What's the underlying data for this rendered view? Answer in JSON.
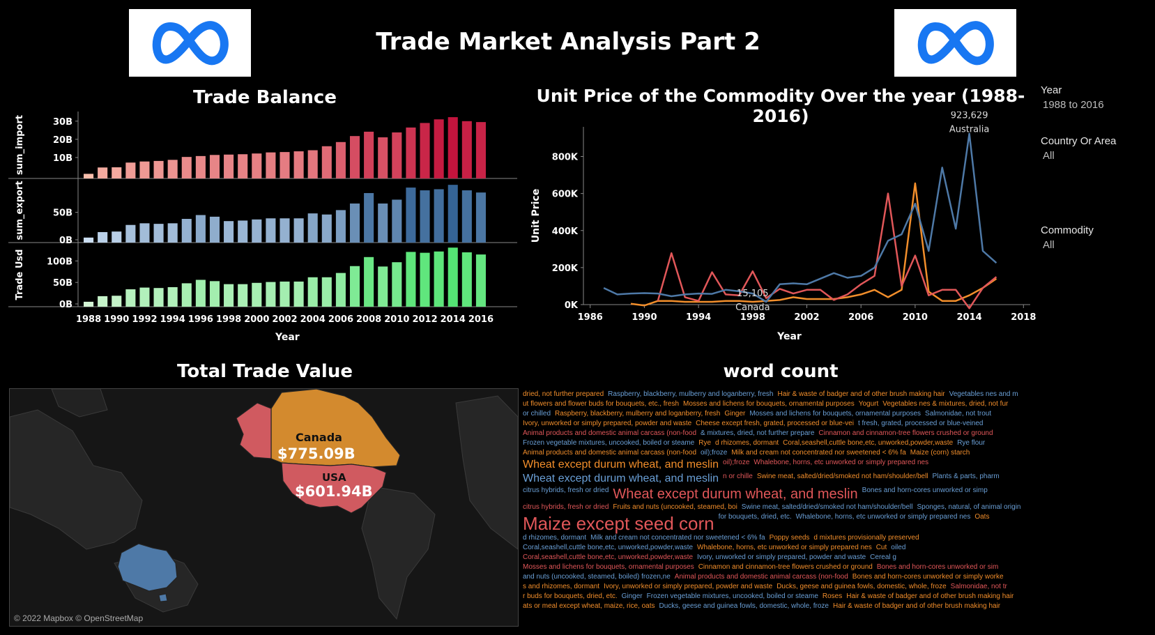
{
  "header": {
    "title": "Trade Market Analysis Part 2",
    "logo_icon": "meta-infinity-logo-icon"
  },
  "colors": {
    "background": "#000000",
    "meta_blue": "#1877f2",
    "series_line_blue": "#4e79a7",
    "series_line_red": "#e15759",
    "series_line_orange": "#f28e2b",
    "map_canada": "#d38a2e",
    "map_usa": "#d05a60",
    "map_australia": "#4e79a7"
  },
  "filters": [
    {
      "label": "Year",
      "value": "1988 to 2016"
    },
    {
      "label": "Country Or Area",
      "value": "All"
    },
    {
      "label": "Commodity",
      "value": "All"
    }
  ],
  "trade_balance": {
    "title": "Trade Balance",
    "xlabel": "Year"
  },
  "unit_price": {
    "title": "Unit Price of the Commodity Over the year (1988-2016)",
    "xlabel": "Year",
    "ylabel": "Unit Price",
    "annotations": [
      {
        "value": "923,629",
        "label": "Australia",
        "x": 2014,
        "y": 923629
      },
      {
        "value": "15,105",
        "label": "Canada",
        "x": 1998,
        "y": 15105
      }
    ]
  },
  "total_trade": {
    "title": "Total Trade Value",
    "labels": [
      {
        "country": "Canada",
        "value": "$775.09B"
      },
      {
        "country": "USA",
        "value": "$601.94B"
      }
    ],
    "attribution": "© 2022 Mapbox © OpenStreetMap"
  },
  "word_count": {
    "title": "word count",
    "words": [
      {
        "text": "dried, not further prepared",
        "size": 10,
        "color": "#f28e2b"
      },
      {
        "text": "Raspberry, blackberry, mulberry and loganberry, fresh",
        "size": 10,
        "color": "#6a9fd6"
      },
      {
        "text": "Hair & waste of badger and of other brush making hair",
        "size": 10,
        "color": "#f28e2b"
      },
      {
        "text": "Vegetables nes and m",
        "size": 10,
        "color": "#6a9fd6"
      },
      {
        "text": "ut flowers and flower buds for bouquets, etc., fresh",
        "size": 10,
        "color": "#f28e2b"
      },
      {
        "text": "Mosses and lichens for bouquets, ornamental purposes",
        "size": 10,
        "color": "#f28e2b"
      },
      {
        "text": "Yogurt",
        "size": 10,
        "color": "#f28e2b"
      },
      {
        "text": "Vegetables nes & mixtures, dried, not fur",
        "size": 10,
        "color": "#f28e2b"
      },
      {
        "text": "or chilled",
        "size": 10,
        "color": "#6a9fd6"
      },
      {
        "text": "Raspberry, blackberry, mulberry and loganberry, fresh",
        "size": 10,
        "color": "#f28e2b"
      },
      {
        "text": "Ginger",
        "size": 10,
        "color": "#f28e2b"
      },
      {
        "text": "Mosses and lichens for bouquets, ornamental purposes",
        "size": 10,
        "color": "#6a9fd6"
      },
      {
        "text": "Salmonidae, not trout",
        "size": 10,
        "color": "#6a9fd6"
      },
      {
        "text": "Ivory, unworked or simply prepared, powder and waste",
        "size": 10,
        "color": "#f28e2b"
      },
      {
        "text": "Cheese except fresh, grated, processed or blue-vei",
        "size": 10,
        "color": "#f28e2b"
      },
      {
        "text": "t fresh, grated, processed or blue-veined",
        "size": 10,
        "color": "#6a9fd6"
      },
      {
        "text": "Animal products and domestic animal carcass (non-food",
        "size": 10,
        "color": "#e15759"
      },
      {
        "text": "& mixtures, dried, not further prepare",
        "size": 10,
        "color": "#6a9fd6"
      },
      {
        "text": "Cinnamon and cinnamon-tree flowers crushed or ground",
        "size": 10,
        "color": "#e15759"
      },
      {
        "text": "Frozen vegetable mixtures, uncooked, boiled or steame",
        "size": 10,
        "color": "#6a9fd6"
      },
      {
        "text": "Rye",
        "size": 10,
        "color": "#f28e2b"
      },
      {
        "text": "d rhizomes, dormant",
        "size": 10,
        "color": "#f28e2b"
      },
      {
        "text": "Coral,seashell,cuttle bone,etc, unworked,powder,waste",
        "size": 10,
        "color": "#f28e2b"
      },
      {
        "text": "Rye flour",
        "size": 10,
        "color": "#6a9fd6"
      },
      {
        "text": "Animal products and domestic animal carcass (non-food",
        "size": 10,
        "color": "#f28e2b"
      },
      {
        "text": "oil);froze",
        "size": 10,
        "color": "#6a9fd6"
      },
      {
        "text": "Milk and cream not concentrated nor sweetened < 6% fa",
        "size": 10,
        "color": "#f28e2b"
      },
      {
        "text": "Maize (corn) starch",
        "size": 10,
        "color": "#f28e2b"
      },
      {
        "text": "Wheat except durum wheat, and meslin",
        "size": 16,
        "color": "#f28e2b"
      },
      {
        "text": "oil);froze",
        "size": 10,
        "color": "#e15759"
      },
      {
        "text": "Whalebone, horns, etc unworked or simply prepared nes",
        "size": 10,
        "color": "#e15759"
      },
      {
        "text": "Wheat except durum wheat, and meslin",
        "size": 16,
        "color": "#6a9fd6"
      },
      {
        "text": "n or chille",
        "size": 10,
        "color": "#e15759"
      },
      {
        "text": "Swine meat, salted/dried/smoked not ham/shoulder/bell",
        "size": 10,
        "color": "#f28e2b"
      },
      {
        "text": "Plants & parts, pharm",
        "size": 10,
        "color": "#6a9fd6"
      },
      {
        "text": "citrus hybrids, fresh or dried",
        "size": 10,
        "color": "#6a9fd6"
      },
      {
        "text": "Wheat except durum wheat, and meslin",
        "size": 20,
        "color": "#e15759"
      },
      {
        "text": "Bones and horn-cores unworked or simp",
        "size": 10,
        "color": "#6a9fd6"
      },
      {
        "text": "citrus hybrids, fresh or dried",
        "size": 10,
        "color": "#e15759"
      },
      {
        "text": "Fruits and nuts (uncooked, steamed, boi",
        "size": 10,
        "color": "#f28e2b"
      },
      {
        "text": "Swine meat, salted/dried/smoked not ham/shoulder/bell",
        "size": 10,
        "color": "#6a9fd6"
      },
      {
        "text": "Sponges, natural, of animal origin",
        "size": 10,
        "color": "#6a9fd6"
      },
      {
        "text": "Maize except seed corn",
        "size": 26,
        "color": "#e15759"
      },
      {
        "text": "for bouquets, dried, etc.",
        "size": 10,
        "color": "#6a9fd6"
      },
      {
        "text": "Whalebone, horns, etc unworked or simply prepared nes",
        "size": 10,
        "color": "#6a9fd6"
      },
      {
        "text": "Oats",
        "size": 10,
        "color": "#f28e2b"
      },
      {
        "text": "d rhizomes, dormant",
        "size": 10,
        "color": "#6a9fd6"
      },
      {
        "text": "Milk and cream not concentrated nor sweetened < 6% fa",
        "size": 10,
        "color": "#6a9fd6"
      },
      {
        "text": "Poppy seeds",
        "size": 10,
        "color": "#f28e2b"
      },
      {
        "text": "d mixtures provisionally preserved",
        "size": 10,
        "color": "#f28e2b"
      },
      {
        "text": "Coral,seashell,cuttle bone,etc, unworked,powder,waste",
        "size": 10,
        "color": "#6a9fd6"
      },
      {
        "text": "Whalebone, horns, etc unworked or simply prepared nes",
        "size": 10,
        "color": "#f28e2b"
      },
      {
        "text": "Cut",
        "size": 10,
        "color": "#f28e2b"
      },
      {
        "text": "oiled",
        "size": 10,
        "color": "#6a9fd6"
      },
      {
        "text": "Coral,seashell,cuttle bone,etc, unworked,powder,waste",
        "size": 10,
        "color": "#e15759"
      },
      {
        "text": "Ivory, unworked or simply prepared, powder and waste",
        "size": 10,
        "color": "#6a9fd6"
      },
      {
        "text": "Cereal g",
        "size": 10,
        "color": "#6a9fd6"
      },
      {
        "text": "Mosses and lichens for bouquets, ornamental purposes",
        "size": 10,
        "color": "#e15759"
      },
      {
        "text": "Cinnamon and cinnamon-tree flowers crushed or ground",
        "size": 10,
        "color": "#f28e2b"
      },
      {
        "text": "Bones and horn-cores unworked or sim",
        "size": 10,
        "color": "#e15759"
      },
      {
        "text": "and nuts (uncooked, steamed, boiled) frozen,ne",
        "size": 10,
        "color": "#6a9fd6"
      },
      {
        "text": "Animal products and domestic animal carcass (non-food",
        "size": 10,
        "color": "#e15759"
      },
      {
        "text": "Bones and horn-cores unworked or simply worke",
        "size": 10,
        "color": "#f28e2b"
      },
      {
        "text": "s and rhizomes, dormant",
        "size": 10,
        "color": "#f28e2b"
      },
      {
        "text": "Ivory, unworked or simply prepared, powder and waste",
        "size": 10,
        "color": "#f28e2b"
      },
      {
        "text": "Ducks, geese and guinea fowls, domestic, whole, froze",
        "size": 10,
        "color": "#f28e2b"
      },
      {
        "text": "Salmonidae, not tr",
        "size": 10,
        "color": "#e15759"
      },
      {
        "text": "r buds for bouquets, dried, etc.",
        "size": 10,
        "color": "#f28e2b"
      },
      {
        "text": "Ginger",
        "size": 10,
        "color": "#6a9fd6"
      },
      {
        "text": "Frozen vegetable mixtures, uncooked, boiled or steame",
        "size": 10,
        "color": "#6a9fd6"
      },
      {
        "text": "Roses",
        "size": 10,
        "color": "#f28e2b"
      },
      {
        "text": "Hair & waste of badger and of other brush making hair",
        "size": 10,
        "color": "#f28e2b"
      },
      {
        "text": "ats or meal except wheat, maize, rice, oats",
        "size": 10,
        "color": "#f28e2b"
      },
      {
        "text": "Ducks, geese and guinea fowls, domestic, whole, froze",
        "size": 10,
        "color": "#6a9fd6"
      },
      {
        "text": "Hair & waste of badger and of other brush making hair",
        "size": 10,
        "color": "#f28e2b"
      }
    ]
  },
  "chart_data": [
    {
      "type": "bar",
      "name": "trade-balance-import",
      "ylabel": "sum_import",
      "categories": [
        1988,
        1989,
        1990,
        1991,
        1992,
        1993,
        1994,
        1995,
        1996,
        1997,
        1998,
        1999,
        2000,
        2001,
        2002,
        2003,
        2004,
        2005,
        2006,
        2007,
        2008,
        2009,
        2010,
        2011,
        2012,
        2013,
        2014,
        2015,
        2016
      ],
      "values": [
        1.0,
        4.5,
        4.6,
        7.2,
        7.8,
        8.1,
        8.7,
        10.3,
        10.8,
        11.4,
        11.6,
        11.8,
        12.2,
        12.8,
        13.0,
        13.4,
        14.0,
        16.2,
        18.5,
        21.8,
        24.2,
        21.1,
        23.8,
        26.5,
        29.0,
        31.0,
        32.2,
        30.0,
        29.5
      ],
      "ylim": [
        0,
        33
      ],
      "ticks": [
        "10B",
        "20B",
        "30B"
      ],
      "tick_values": [
        10,
        20,
        30
      ]
    },
    {
      "type": "bar",
      "name": "trade-balance-export",
      "ylabel": "sum_export",
      "categories": [
        1988,
        1989,
        1990,
        1991,
        1992,
        1993,
        1994,
        1995,
        1996,
        1997,
        1998,
        1999,
        2000,
        2001,
        2002,
        2003,
        2004,
        2005,
        2006,
        2007,
        2008,
        2009,
        2010,
        2011,
        2012,
        2013,
        2014,
        2015,
        2016
      ],
      "values": [
        4,
        14,
        15,
        27,
        30,
        29,
        30,
        38,
        45,
        42,
        34,
        35,
        37,
        39,
        39,
        39,
        48,
        46,
        54,
        66,
        85,
        66,
        73,
        95,
        90,
        92,
        100,
        90,
        86
      ],
      "ylim": [
        0,
        104
      ],
      "ticks": [
        "0B",
        "50B"
      ],
      "tick_values": [
        0,
        50
      ]
    },
    {
      "type": "bar",
      "name": "trade-balance-usd",
      "ylabel": "Trade Usd",
      "categories": [
        1988,
        1989,
        1990,
        1991,
        1992,
        1993,
        1994,
        1995,
        1996,
        1997,
        1998,
        1999,
        2000,
        2001,
        2002,
        2003,
        2004,
        2005,
        2006,
        2007,
        2008,
        2009,
        2010,
        2011,
        2012,
        2013,
        2014,
        2015,
        2016
      ],
      "values": [
        5,
        18,
        19,
        34,
        38,
        37,
        39,
        48,
        56,
        53,
        46,
        46,
        49,
        51,
        52,
        52,
        62,
        62,
        72,
        88,
        109,
        87,
        97,
        121,
        119,
        122,
        131,
        120,
        115
      ],
      "ylim": [
        0,
        133
      ],
      "ticks": [
        "0B",
        "50B",
        "100B"
      ],
      "tick_values": [
        0,
        50,
        100
      ]
    },
    {
      "type": "line",
      "name": "unit-price",
      "xlabel": "Year",
      "ylabel": "Unit Price",
      "xlim": [
        1985.5,
        2018.5
      ],
      "ylim": [
        0,
        960000
      ],
      "xticks": [
        1986,
        1990,
        1994,
        1998,
        2002,
        2006,
        2010,
        2014,
        2018
      ],
      "yticks": [
        0,
        200000,
        400000,
        600000,
        800000
      ],
      "ytick_labels": [
        "0K",
        "200K",
        "400K",
        "600K",
        "800K"
      ],
      "series": [
        {
          "color": "#4e79a7",
          "x": [
            1987,
            1988,
            1989,
            1990,
            1991,
            1992,
            1993,
            1994,
            1995,
            1996,
            1997,
            1998,
            1999,
            2000,
            2001,
            2002,
            2003,
            2004,
            2005,
            2006,
            2007,
            2008,
            2009,
            2010,
            2011,
            2012,
            2013,
            2014,
            2015,
            2016
          ],
          "y": [
            90000,
            55000,
            60000,
            62000,
            60000,
            45000,
            55000,
            60000,
            58000,
            80000,
            72000,
            60000,
            15105,
            110000,
            115000,
            110000,
            140000,
            170000,
            145000,
            155000,
            200000,
            345000,
            380000,
            545000,
            290000,
            740000,
            410000,
            923629,
            290000,
            225000
          ]
        },
        {
          "color": "#e15759",
          "x": [
            1991,
            1992,
            1993,
            1994,
            1995,
            1996,
            1997,
            1998,
            1999,
            2000,
            2001,
            2002,
            2003,
            2004,
            2005,
            2006,
            2007,
            2008,
            2009,
            2010,
            2011,
            2012,
            2013,
            2014,
            2015,
            2016
          ],
          "y": [
            20000,
            278000,
            40000,
            20000,
            175000,
            55000,
            50000,
            180000,
            35000,
            85000,
            60000,
            80000,
            80000,
            25000,
            55000,
            110000,
            155000,
            600000,
            100000,
            265000,
            50000,
            80000,
            80000,
            -20000,
            90000,
            150000
          ]
        },
        {
          "color": "#f28e2b",
          "x": [
            1989,
            1990,
            1991,
            1992,
            1993,
            1994,
            1995,
            1996,
            1997,
            1998,
            1999,
            2000,
            2001,
            2002,
            2003,
            2004,
            2005,
            2006,
            2007,
            2008,
            2009,
            2010,
            2011,
            2012,
            2013,
            2014,
            2015,
            2016
          ],
          "y": [
            5000,
            -5000,
            20000,
            20000,
            15000,
            15000,
            15000,
            20000,
            20000,
            15000,
            20000,
            25000,
            40000,
            30000,
            30000,
            30000,
            40000,
            55000,
            80000,
            40000,
            80000,
            655000,
            70000,
            20000,
            20000,
            50000,
            90000,
            140000
          ]
        }
      ]
    }
  ]
}
